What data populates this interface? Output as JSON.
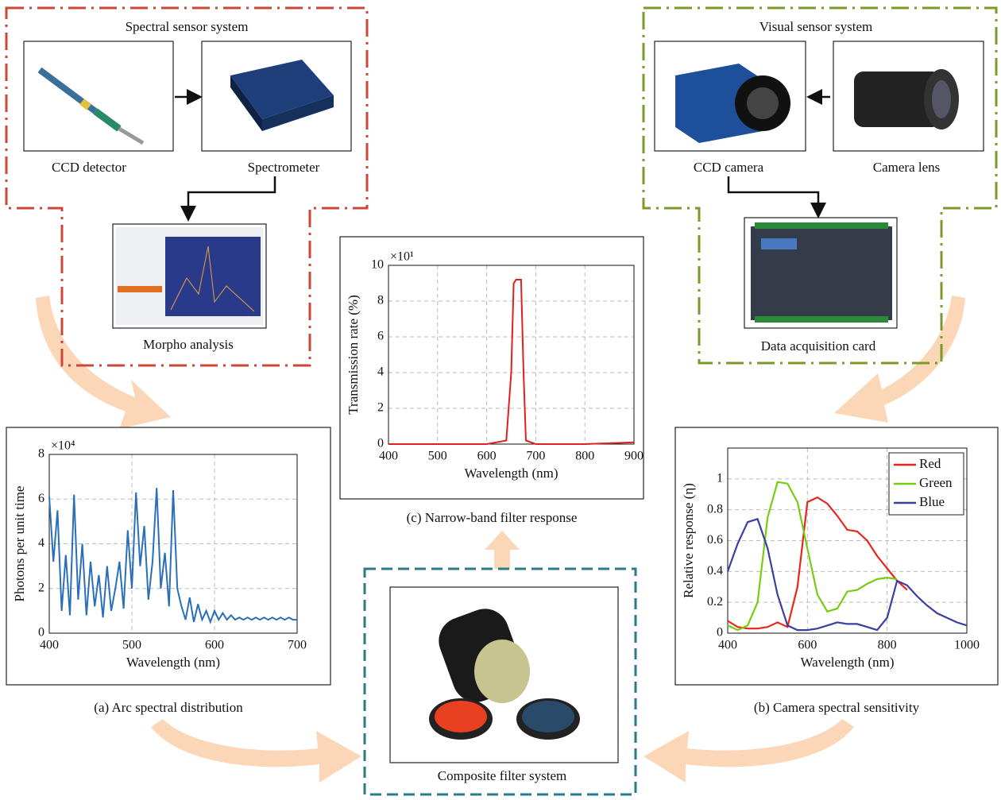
{
  "spectral_system": {
    "title": "Spectral sensor system",
    "ccd_detector": "CCD detector",
    "spectrometer": "Spectrometer",
    "morpho": "Morpho analysis"
  },
  "visual_system": {
    "title": "Visual sensor system",
    "ccd_camera": "CCD camera",
    "camera_lens": "Camera lens",
    "daq": "Data acquisition card"
  },
  "filter_system": {
    "label": "Composite filter system"
  },
  "chart_data": [
    {
      "type": "line",
      "caption": "(a) Arc spectral distribution",
      "multiplier": "×10⁴",
      "xlabel": "Wavelength (nm)",
      "ylabel": "Photons per unit time",
      "xlim": [
        400,
        700
      ],
      "xticks": [
        400,
        500,
        600,
        700
      ],
      "ylim": [
        0,
        8
      ],
      "yticks": [
        0,
        2,
        4,
        6,
        8
      ],
      "grid": true,
      "color": "#2a6fba",
      "x": [
        400,
        405,
        410,
        415,
        420,
        425,
        430,
        435,
        440,
        445,
        450,
        455,
        460,
        465,
        470,
        475,
        480,
        485,
        490,
        495,
        500,
        505,
        510,
        515,
        520,
        525,
        530,
        535,
        540,
        545,
        550,
        555,
        560,
        565,
        570,
        575,
        580,
        585,
        590,
        595,
        600,
        605,
        610,
        615,
        620,
        625,
        630,
        635,
        640,
        645,
        650,
        655,
        660,
        665,
        670,
        675,
        680,
        685,
        690,
        695,
        700
      ],
      "values": [
        6.1,
        3.2,
        5.5,
        1.0,
        3.5,
        0.8,
        6.2,
        1.5,
        4.0,
        0.8,
        3.2,
        1.2,
        2.6,
        0.7,
        3.0,
        1.0,
        2.0,
        3.2,
        1.1,
        4.6,
        2.0,
        6.3,
        3.0,
        4.8,
        1.5,
        3.2,
        6.5,
        2.0,
        3.6,
        1.2,
        6.4,
        2.0,
        1.2,
        0.6,
        1.6,
        0.5,
        1.3,
        0.6,
        1.0,
        0.5,
        1.0,
        0.6,
        0.9,
        0.6,
        0.8,
        0.6,
        0.7,
        0.6,
        0.7,
        0.6,
        0.7,
        0.6,
        0.7,
        0.6,
        0.7,
        0.6,
        0.7,
        0.6,
        0.7,
        0.6,
        0.6
      ]
    },
    {
      "type": "line",
      "caption": "(c) Narrow-band filter response",
      "multiplier": "×10¹",
      "xlabel": "Wavelength (nm)",
      "ylabel": "Transmission rate (%)",
      "xlim": [
        400,
        900
      ],
      "xticks": [
        400,
        500,
        600,
        700,
        800,
        900
      ],
      "ylim": [
        0,
        10
      ],
      "yticks": [
        0,
        2,
        4,
        6,
        8,
        10
      ],
      "grid": true,
      "color": "#e02020",
      "x": [
        400,
        600,
        640,
        650,
        655,
        660,
        670,
        675,
        680,
        700,
        800,
        900
      ],
      "values": [
        0,
        0,
        0.2,
        4,
        9,
        9.2,
        9.2,
        4,
        0.2,
        0,
        0,
        0.1
      ]
    },
    {
      "type": "line",
      "caption": "(b) Camera spectral sensitivity",
      "xlabel": "Wavelength (nm)",
      "ylabel": "Relative response (η)",
      "xlim": [
        400,
        1000
      ],
      "xticks": [
        400,
        600,
        800,
        1000
      ],
      "ylim": [
        0,
        1.2
      ],
      "yticks": [
        0,
        0.2,
        0.4,
        0.6,
        0.8,
        1
      ],
      "grid": true,
      "legend": "upper right",
      "x": [
        400,
        425,
        450,
        475,
        500,
        525,
        550,
        575,
        600,
        625,
        650,
        675,
        700,
        725,
        750,
        775,
        800,
        825,
        850,
        875,
        900,
        925,
        950,
        975,
        1000
      ],
      "series": [
        {
          "name": "Red",
          "color": "#e8261e",
          "values": [
            0.08,
            0.04,
            0.03,
            0.03,
            0.04,
            0.07,
            0.04,
            0.3,
            0.85,
            0.88,
            0.84,
            0.76,
            0.67,
            0.66,
            0.6,
            0.5,
            0.42,
            0.34,
            0.28,
            null,
            null,
            null,
            null,
            null,
            null
          ]
        },
        {
          "name": "Green",
          "color": "#77cc11",
          "values": [
            0.05,
            0.02,
            0.05,
            0.2,
            0.75,
            0.98,
            0.97,
            0.85,
            0.55,
            0.25,
            0.14,
            0.16,
            0.27,
            0.28,
            0.32,
            0.35,
            0.36,
            0.35,
            null,
            null,
            null,
            null,
            null,
            null,
            null
          ]
        },
        {
          "name": "Blue",
          "color": "#3a3fa0",
          "values": [
            0.4,
            0.58,
            0.72,
            0.74,
            0.55,
            0.25,
            0.05,
            0.02,
            0.02,
            0.03,
            0.05,
            0.07,
            0.06,
            0.06,
            0.04,
            0.02,
            0.1,
            0.34,
            0.31,
            0.24,
            0.18,
            0.13,
            0.1,
            0.07,
            0.05
          ]
        }
      ]
    }
  ]
}
